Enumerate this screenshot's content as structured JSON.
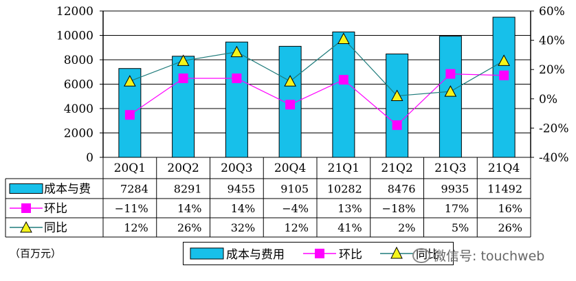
{
  "unit_label": "（百万元）",
  "watermark": "微信号: touchweb",
  "colors": {
    "bar": "#17c0ea",
    "mom": "#ff00ff",
    "yoy_line": "#1e7b7b",
    "yoy_marker": "#f4f41a"
  },
  "legend": {
    "items": [
      "成本与费用",
      "环比",
      "同比"
    ]
  },
  "chart_data": {
    "type": "bar",
    "categories": [
      "20Q1",
      "20Q2",
      "20Q3",
      "20Q4",
      "21Q1",
      "21Q2",
      "21Q3",
      "21Q4"
    ],
    "ylim": [
      0,
      12000
    ],
    "yticks": [
      "12000",
      "10000",
      "8000",
      "6000",
      "4000",
      "2000",
      "0"
    ],
    "y2lim": [
      -40,
      60
    ],
    "y2ticks": [
      "60%",
      "40%",
      "20%",
      "0%",
      "-20%",
      "-40%"
    ],
    "series": [
      {
        "name": "成本与费用",
        "kind": "bar",
        "values": [
          7284,
          8291,
          9455,
          9105,
          10282,
          8476,
          9935,
          11492
        ]
      },
      {
        "name": "环比",
        "kind": "line",
        "axis": "right",
        "values": [
          -11,
          14,
          14,
          -4,
          13,
          -18,
          17,
          16
        ]
      },
      {
        "name": "同比",
        "kind": "line",
        "axis": "right",
        "values": [
          12,
          26,
          32,
          12,
          41,
          2,
          5,
          26
        ]
      }
    ],
    "table": {
      "row_labels": [
        "成本与费",
        "环比",
        "同比"
      ],
      "rows": [
        [
          "7284",
          "8291",
          "9455",
          "9105",
          "10282",
          "8476",
          "9935",
          "11492"
        ],
        [
          "−11%",
          "14%",
          "14%",
          "−4%",
          "13%",
          "−18%",
          "17%",
          "16%"
        ],
        [
          "12%",
          "26%",
          "32%",
          "12%",
          "41%",
          "2%",
          "5%",
          "26%"
        ]
      ]
    }
  }
}
